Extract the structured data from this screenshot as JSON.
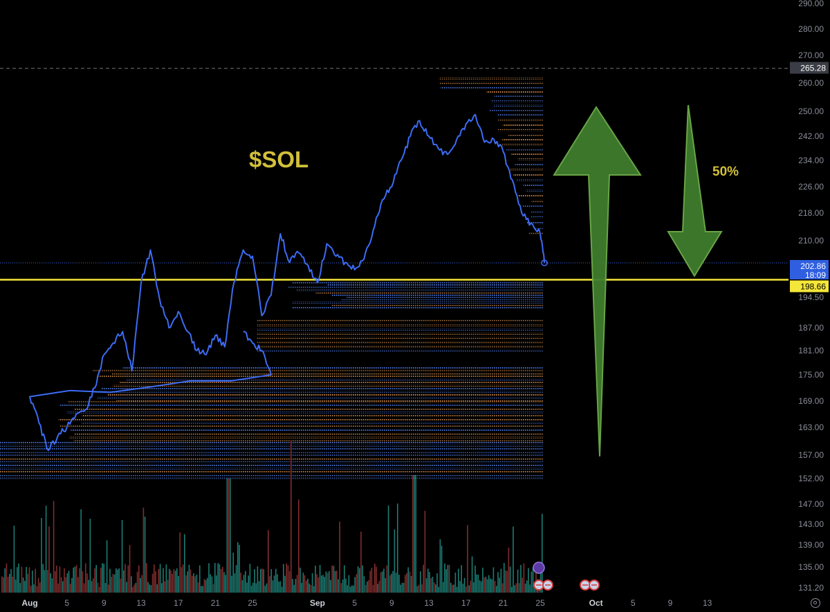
{
  "colors": {
    "background": "#000000",
    "price_line": "#3d6cf5",
    "support_line": "#f5e63a",
    "arrow_fill": "#3f7d2e",
    "arrow_stroke": "#6fae4a",
    "label_gold": "#d2c03a",
    "vol_up": "#26a69a",
    "vol_down": "#a33a3a",
    "tick_text": "#8b8f99"
  },
  "annotations": {
    "symbol": "$SOL",
    "percent": "50%"
  },
  "price_tags": {
    "top_dashed": "265.28",
    "current_price": "202.86",
    "countdown": "18:09",
    "support": "198.66"
  },
  "axis": {
    "y_ticks": [
      "290.00",
      "280.00",
      "270.00",
      "260.00",
      "250.00",
      "242.00",
      "234.00",
      "226.00",
      "218.00",
      "210.00",
      "202.00",
      "194.50",
      "187.00",
      "181.00",
      "175.00",
      "169.00",
      "163.00",
      "157.00",
      "152.00",
      "147.00",
      "143.00",
      "139.00",
      "135.00",
      "131.20"
    ],
    "x_ticks": [
      {
        "label": "Aug",
        "major": true
      },
      {
        "label": "5"
      },
      {
        "label": "9"
      },
      {
        "label": "13"
      },
      {
        "label": "17"
      },
      {
        "label": "21"
      },
      {
        "label": "25"
      },
      {
        "label": "Sep",
        "major": true
      },
      {
        "label": "5"
      },
      {
        "label": "9"
      },
      {
        "label": "13"
      },
      {
        "label": "17"
      },
      {
        "label": "21"
      },
      {
        "label": "25"
      },
      {
        "label": "Oct",
        "major": true
      },
      {
        "label": "5"
      },
      {
        "label": "9"
      },
      {
        "label": "13"
      }
    ]
  },
  "chart_data": {
    "type": "line",
    "title": "$SOL",
    "y_scale": "log",
    "ylim": [
      131.2,
      290
    ],
    "x_range": [
      "Jul 28",
      "Oct 16"
    ],
    "series": [
      {
        "values_approx": [
          {
            "x": "Jul 28",
            "y": 186
          },
          {
            "x": "Jul 29",
            "y": 183
          },
          {
            "x": "Jul 30",
            "y": 181
          },
          {
            "x": "Jul 31",
            "y": 175
          },
          {
            "x": "Aug 1",
            "y": 170
          },
          {
            "x": "Aug 2",
            "y": 164
          },
          {
            "x": "Aug 3",
            "y": 158
          },
          {
            "x": "Aug 4",
            "y": 161
          },
          {
            "x": "Aug 5",
            "y": 163
          },
          {
            "x": "Aug 6",
            "y": 166
          },
          {
            "x": "Aug 7",
            "y": 167
          },
          {
            "x": "Aug 8",
            "y": 172
          },
          {
            "x": "Aug 9",
            "y": 180
          },
          {
            "x": "Aug 10",
            "y": 183
          },
          {
            "x": "Aug 11",
            "y": 186
          },
          {
            "x": "Aug 12",
            "y": 176
          },
          {
            "x": "Aug 13",
            "y": 198
          },
          {
            "x": "Aug 14",
            "y": 207
          },
          {
            "x": "Aug 15",
            "y": 194
          },
          {
            "x": "Aug 16",
            "y": 187
          },
          {
            "x": "Aug 17",
            "y": 191
          },
          {
            "x": "Aug 18",
            "y": 186
          },
          {
            "x": "Aug 19",
            "y": 181
          },
          {
            "x": "Aug 20",
            "y": 180
          },
          {
            "x": "Aug 21",
            "y": 185
          },
          {
            "x": "Aug 22",
            "y": 182
          },
          {
            "x": "Aug 23",
            "y": 198
          },
          {
            "x": "Aug 24",
            "y": 207
          },
          {
            "x": "Aug 25",
            "y": 205
          },
          {
            "x": "Aug 26",
            "y": 190
          },
          {
            "x": "Aug 27",
            "y": 195
          },
          {
            "x": "Aug 28",
            "y": 212
          },
          {
            "x": "Aug 29",
            "y": 203
          },
          {
            "x": "Aug 30",
            "y": 206
          },
          {
            "x": "Aug 31",
            "y": 202
          },
          {
            "x": "Sep 1",
            "y": 198
          },
          {
            "x": "Sep 2",
            "y": 209
          },
          {
            "x": "Sep 3",
            "y": 205
          },
          {
            "x": "Sep 4",
            "y": 203
          },
          {
            "x": "Sep 5",
            "y": 201
          },
          {
            "x": "Sep 6",
            "y": 204
          },
          {
            "x": "Sep 7",
            "y": 213
          },
          {
            "x": "Sep 8",
            "y": 222
          },
          {
            "x": "Sep 9",
            "y": 226
          },
          {
            "x": "Sep 10",
            "y": 234
          },
          {
            "x": "Sep 11",
            "y": 242
          },
          {
            "x": "Sep 12",
            "y": 247
          },
          {
            "x": "Sep 13",
            "y": 242
          },
          {
            "x": "Sep 14",
            "y": 238
          },
          {
            "x": "Sep 15",
            "y": 236
          },
          {
            "x": "Sep 16",
            "y": 241
          },
          {
            "x": "Sep 17",
            "y": 246
          },
          {
            "x": "Sep 18",
            "y": 249
          },
          {
            "x": "Sep 19",
            "y": 240
          },
          {
            "x": "Sep 20",
            "y": 241
          },
          {
            "x": "Sep 21",
            "y": 237
          },
          {
            "x": "Sep 22",
            "y": 228
          },
          {
            "x": "Sep 23",
            "y": 218
          },
          {
            "x": "Sep 24",
            "y": 215
          },
          {
            "x": "Sep 25",
            "y": 212
          },
          {
            "x": "Sep 25",
            "y": 202.86
          }
        ]
      }
    ],
    "horizontal_lines": [
      {
        "y": 198.66,
        "color": "#f5e63a",
        "style": "solid"
      },
      {
        "y": 265.28,
        "color": "#777777",
        "style": "dashed"
      },
      {
        "y": 202.86,
        "color": "#3d6cf5",
        "style": "dotted"
      }
    ],
    "arrows": [
      {
        "direction": "up",
        "from": 157,
        "to": 252
      },
      {
        "direction": "down",
        "from": 253,
        "to": 199
      }
    ],
    "volume_profile": "horizontal dotted bars (blue & orange) from price levels ~152 to ~262, extending to Sep 25",
    "volume": "bars along the bottom, green/red"
  }
}
